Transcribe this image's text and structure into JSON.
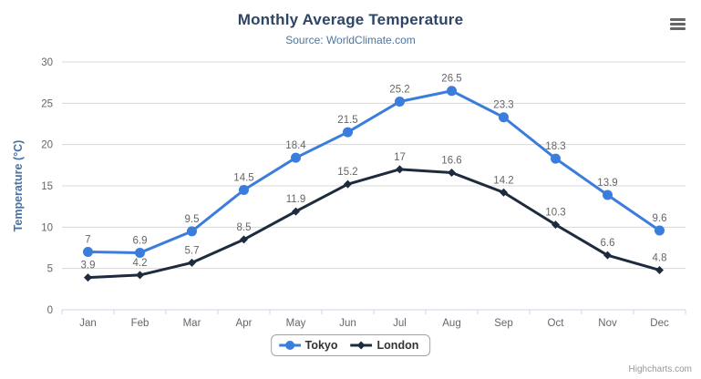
{
  "chart": {
    "title": "Monthly Average Temperature",
    "subtitle": "Source: WorldClimate.com",
    "menu_icon": "hamburger-menu-icon"
  },
  "credits": {
    "label": "Highcharts.com"
  },
  "colors": {
    "title": "#2e4564",
    "subtitle": "#4d759e",
    "axis_title": "#4572a7",
    "tick_label": "#666666",
    "data_label": "#666666",
    "gridline": "#d8d8d8",
    "axis_line": "#ccd6eb",
    "tokyo": "#3b7ddd",
    "london": "#1d2b3e",
    "menu_icon": "#666666",
    "credits_text": "#999999"
  },
  "chart_data": {
    "type": "line",
    "title": "Monthly Average Temperature",
    "subtitle": "Source: WorldClimate.com",
    "categories": [
      "Jan",
      "Feb",
      "Mar",
      "Apr",
      "May",
      "Jun",
      "Jul",
      "Aug",
      "Sep",
      "Oct",
      "Nov",
      "Dec"
    ],
    "series": [
      {
        "name": "Tokyo",
        "marker": "circle",
        "color": "#3b7ddd",
        "values": [
          7.0,
          6.9,
          9.5,
          14.5,
          18.4,
          21.5,
          25.2,
          26.5,
          23.3,
          18.3,
          13.9,
          9.6
        ],
        "data_labels": [
          "7",
          "6.9",
          "9.5",
          "14.5",
          "18.4",
          "21.5",
          "25.2",
          "26.5",
          "23.3",
          "18.3",
          "13.9",
          "9.6"
        ]
      },
      {
        "name": "London",
        "marker": "diamond",
        "color": "#1d2b3e",
        "values": [
          3.9,
          4.2,
          5.7,
          8.5,
          11.9,
          15.2,
          17.0,
          16.6,
          14.2,
          10.3,
          6.6,
          4.8
        ],
        "data_labels": [
          "3.9",
          "4.2",
          "5.7",
          "8.5",
          "11.9",
          "15.2",
          "17",
          "16.6",
          "14.2",
          "10.3",
          "6.6",
          "4.8"
        ]
      }
    ],
    "xlabel": "",
    "ylabel": "Temperature (°C)",
    "ylim": [
      0,
      30
    ],
    "ytick_interval": 5,
    "ytick_labels": [
      "0",
      "5",
      "10",
      "15",
      "20",
      "25",
      "30"
    ],
    "grid": true,
    "legend_position": "bottom",
    "data_labels_visible": true
  }
}
